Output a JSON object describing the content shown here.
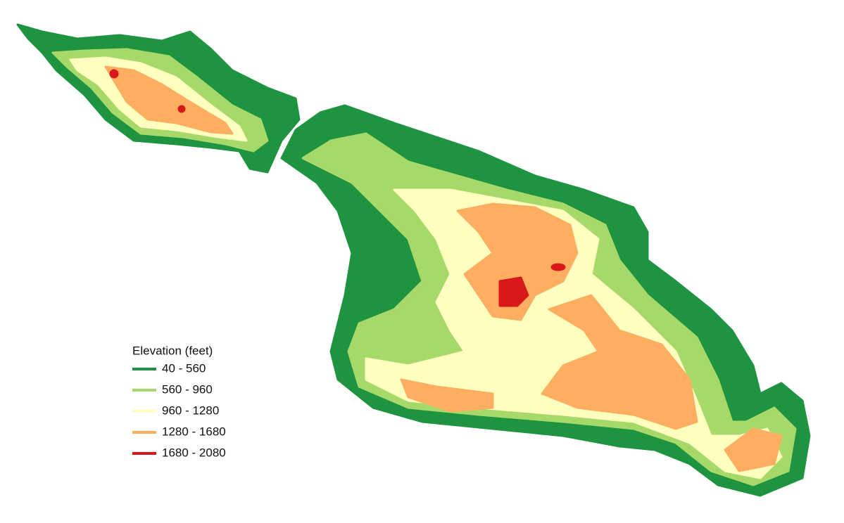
{
  "legend": {
    "title": "Elevation (feet)",
    "items": [
      {
        "label": "40 - 560",
        "color": "#1f9440"
      },
      {
        "label": "560 - 960",
        "color": "#a6d96a"
      },
      {
        "label": "960 - 1280",
        "color": "#ffffbf"
      },
      {
        "label": "1280 - 1680",
        "color": "#fdae61"
      },
      {
        "label": "1680 - 2080",
        "color": "#d7191c"
      }
    ]
  }
}
